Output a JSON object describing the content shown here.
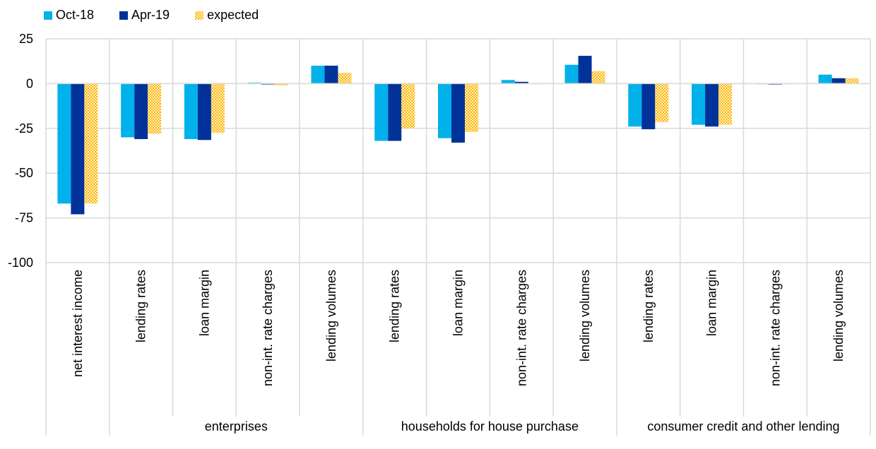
{
  "chart_data": {
    "type": "bar",
    "title": "",
    "xlabel": "",
    "ylabel": "",
    "ylim": [
      -100,
      25
    ],
    "yticks": [
      25,
      0,
      -25,
      -50,
      -75,
      -100
    ],
    "grid": true,
    "legend_position": "top-left",
    "categories": [
      "net interest income",
      "lending rates",
      "loan margin",
      "non-int. rate charges",
      "lending volumes",
      "lending rates",
      "loan margin",
      "non-int. rate charges",
      "lending volumes",
      "lending rates",
      "loan margin",
      "non-int. rate charges",
      "lending volumes"
    ],
    "groups": [
      {
        "label": "",
        "span": 1
      },
      {
        "label": "enterprises",
        "span": 4
      },
      {
        "label": "households for house purchase",
        "span": 4
      },
      {
        "label": "consumer credit and other lending",
        "span": 4
      }
    ],
    "series": [
      {
        "name": "Oct-18",
        "color": "#00b1ea",
        "pattern": "solid",
        "values": [
          -67,
          -30,
          -31,
          0.5,
          10,
          -32,
          -30.5,
          2,
          10.5,
          -24,
          -23,
          0,
          5
        ]
      },
      {
        "name": "Apr-19",
        "color": "#003299",
        "pattern": "solid",
        "values": [
          -73,
          -31,
          -31.5,
          -0.5,
          10,
          -32,
          -33,
          1,
          15.5,
          -25.5,
          -24,
          -0.5,
          3
        ]
      },
      {
        "name": "expected",
        "color": "#ffb400",
        "pattern": "dotted",
        "values": [
          -67,
          -28,
          -27.5,
          -1,
          6,
          -25,
          -27,
          0,
          7,
          -21.5,
          -23,
          0,
          3
        ]
      }
    ]
  }
}
